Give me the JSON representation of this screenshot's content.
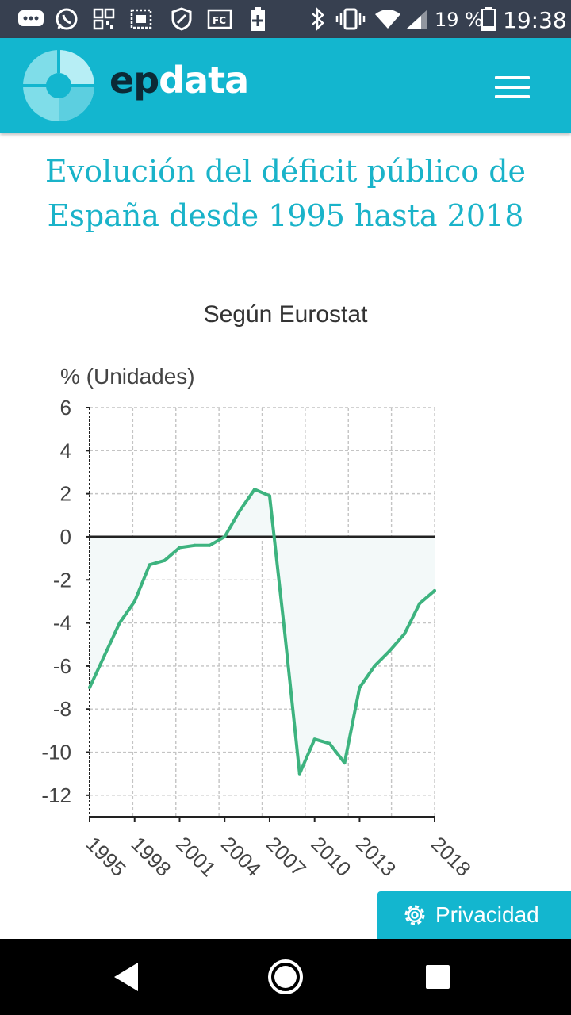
{
  "status_bar": {
    "battery_percent": "19 %",
    "time": "19:38",
    "icons": [
      "chat-bubble-icon",
      "whatsapp-icon",
      "qr-icon",
      "image-icon",
      "block-icon",
      "fc-icon",
      "battery-plus-icon",
      "bluetooth-icon",
      "vibrate-icon",
      "wifi-icon",
      "signal-icon",
      "battery-icon"
    ]
  },
  "app_bar": {
    "logo_ep": "ep",
    "logo_data": "data",
    "menu_icon": "hamburger-icon",
    "color": "#13b6cf"
  },
  "page": {
    "title": "Evolución del déficit público de España desde 1995 hasta 2018",
    "subtitle": "Según Eurostat"
  },
  "chart_data": {
    "type": "area",
    "ylabel": "% (Unidades)",
    "ylim": [
      -13,
      6
    ],
    "yticks": [
      6,
      4,
      2,
      0,
      -2,
      -4,
      -6,
      -8,
      -10,
      -12
    ],
    "xlim": [
      1995,
      2018
    ],
    "xticks": [
      1995,
      1998,
      2001,
      2004,
      2007,
      2010,
      2013,
      2018
    ],
    "grid": true,
    "line_color": "#3db37f",
    "fill_color": "#f3f9f9",
    "series": [
      {
        "x": [
          1995,
          1996,
          1997,
          1998,
          1999,
          2000,
          2001,
          2002,
          2003,
          2004,
          2005,
          2006,
          2007,
          2008,
          2009,
          2010,
          2011,
          2012,
          2013,
          2014,
          2015,
          2016,
          2017,
          2018
        ],
        "values": [
          -7.0,
          -5.5,
          -4.0,
          -3.0,
          -1.3,
          -1.1,
          -0.5,
          -0.4,
          -0.4,
          0.0,
          1.2,
          2.2,
          1.9,
          -4.4,
          -11.0,
          -9.4,
          -9.6,
          -10.5,
          -7.0,
          -6.0,
          -5.3,
          -4.5,
          -3.1,
          -2.5
        ]
      }
    ]
  },
  "privacy_button": {
    "label": "Privacidad",
    "icon": "gear-icon"
  },
  "nav_bar": {
    "icons": [
      "back-icon",
      "home-icon",
      "recents-icon"
    ]
  }
}
